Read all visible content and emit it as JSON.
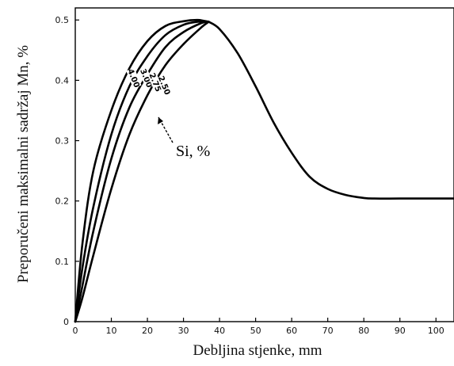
{
  "chart_data": {
    "type": "line",
    "xlabel": "Debljina stjenke, mm",
    "ylabel": "Preporučeni maksimalni sadržaj Mn, %",
    "xlim": [
      0,
      105
    ],
    "ylim": [
      0,
      0.52
    ],
    "x_ticks": [
      "0",
      "10",
      "20",
      "30",
      "40",
      "50",
      "60",
      "70",
      "80",
      "90",
      "100"
    ],
    "y_ticks": [
      "0",
      "0.1",
      "0.2",
      "0.3",
      "0.4",
      "0.5"
    ],
    "grid": false,
    "annotation": "Si, %",
    "series": [
      {
        "name": "4.00",
        "x": [
          0,
          2,
          5,
          10,
          15,
          20,
          25,
          30,
          34,
          37
        ],
        "y": [
          0,
          0.13,
          0.25,
          0.35,
          0.42,
          0.465,
          0.49,
          0.498,
          0.5,
          0.497
        ]
      },
      {
        "name": "3.00",
        "x": [
          0,
          2,
          5,
          10,
          15,
          20,
          25,
          30,
          34,
          37
        ],
        "y": [
          0,
          0.09,
          0.19,
          0.31,
          0.39,
          0.44,
          0.475,
          0.492,
          0.497,
          0.497
        ]
      },
      {
        "name": "2.75",
        "x": [
          0,
          2,
          5,
          10,
          15,
          20,
          25,
          30,
          35,
          37
        ],
        "y": [
          0,
          0.06,
          0.15,
          0.27,
          0.355,
          0.41,
          0.455,
          0.48,
          0.495,
          0.497
        ]
      },
      {
        "name": "2.50",
        "x": [
          0,
          2,
          5,
          10,
          15,
          20,
          25,
          30,
          35,
          37
        ],
        "y": [
          0,
          0.04,
          0.11,
          0.22,
          0.31,
          0.375,
          0.425,
          0.46,
          0.488,
          0.497
        ]
      },
      {
        "name": "",
        "x": [
          37,
          40,
          45,
          50,
          55,
          60,
          65,
          70,
          75,
          80,
          83,
          90,
          100,
          105
        ],
        "y": [
          0.497,
          0.485,
          0.445,
          0.39,
          0.33,
          0.28,
          0.24,
          0.22,
          0.21,
          0.205,
          0.204,
          0.204,
          0.204,
          0.204
        ]
      }
    ]
  }
}
